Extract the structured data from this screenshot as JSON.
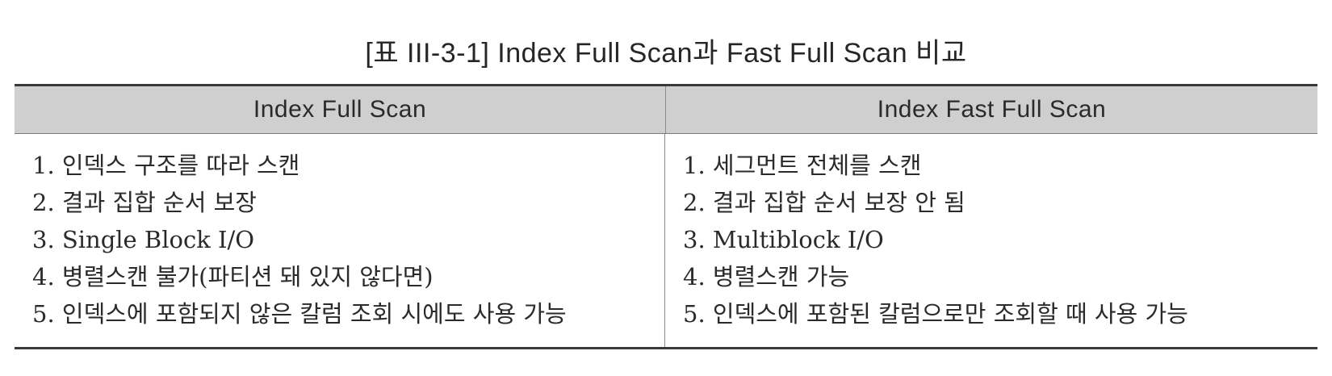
{
  "caption": "[표 III-3-1] Index Full Scan과 Fast Full Scan 비교",
  "table": {
    "headers": [
      "Index Full Scan",
      "Index Fast Full Scan"
    ],
    "left_items": [
      "1. 인덱스 구조를 따라 스캔",
      "2. 결과 집합 순서 보장",
      "3. Single Block I/O",
      "4. 병렬스캔 불가(파티션 돼 있지 않다면)",
      "5. 인덱스에 포함되지 않은 칼럼 조회 시에도 사용 가능"
    ],
    "right_items": [
      "1. 세그먼트 전체를 스캔",
      "2. 결과 집합 순서 보장 안 됨",
      "3. Multiblock I/O",
      "4. 병렬스캔 가능",
      "5. 인덱스에 포함된 칼럼으로만 조회할 때 사용 가능"
    ]
  }
}
